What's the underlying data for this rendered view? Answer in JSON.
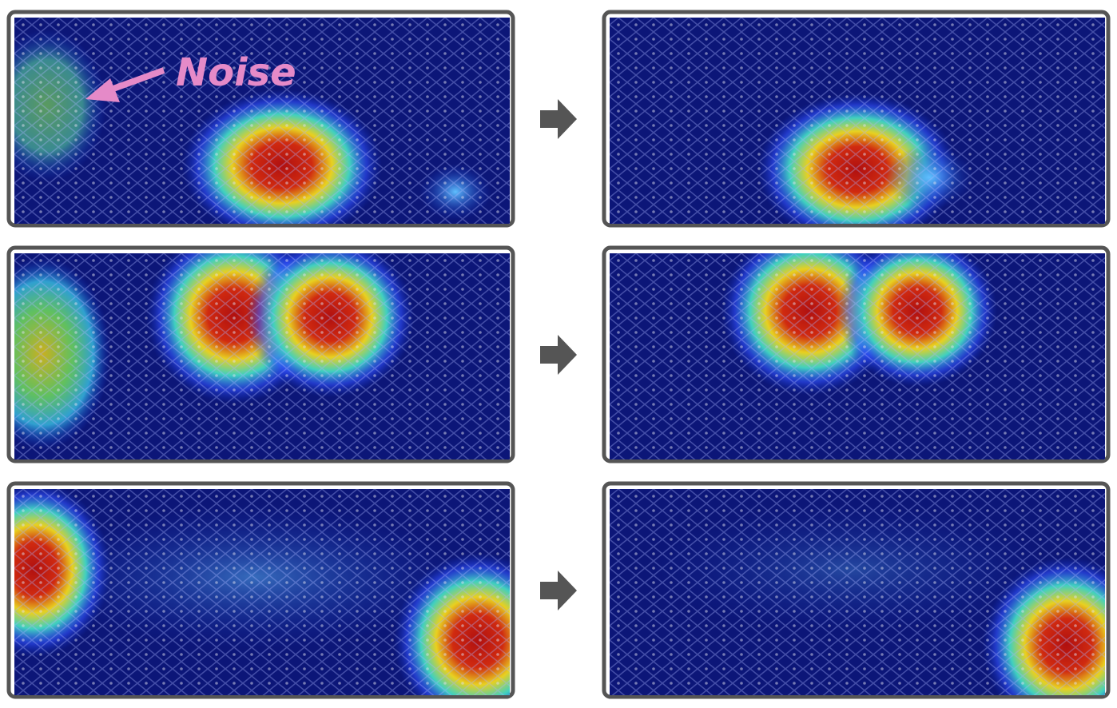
{
  "annotation": {
    "label": "Noise"
  }
}
